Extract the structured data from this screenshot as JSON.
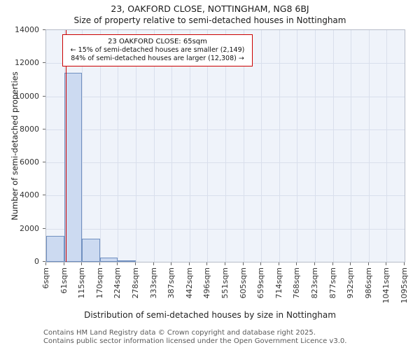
{
  "header": {
    "title": "23, OAKFORD CLOSE, NOTTINGHAM, NG8 6BJ",
    "subtitle": "Size of property relative to semi-detached houses in Nottingham"
  },
  "annotation": {
    "line1": "23 OAKFORD CLOSE: 65sqm",
    "line2": "← 15% of semi-detached houses are smaller (2,149)",
    "line3": "84% of semi-detached houses are larger (12,308) →"
  },
  "footer": {
    "line1": "Contains HM Land Registry data © Crown copyright and database right 2025.",
    "line2": "Contains public sector information licensed under the Open Government Licence v3.0."
  },
  "chart_data": {
    "type": "bar",
    "title": "Size of property relative to semi-detached houses in Nottingham",
    "xlabel": "Distribution of semi-detached houses by size in Nottingham",
    "ylabel": "Number of semi-detached properties",
    "categories": [
      "6sqm",
      "61sqm",
      "115sqm",
      "170sqm",
      "224sqm",
      "278sqm",
      "333sqm",
      "387sqm",
      "442sqm",
      "496sqm",
      "551sqm",
      "605sqm",
      "659sqm",
      "714sqm",
      "768sqm",
      "823sqm",
      "877sqm",
      "932sqm",
      "986sqm",
      "1041sqm",
      "1095sqm"
    ],
    "values": [
      1550,
      11400,
      1400,
      250,
      60,
      0,
      0,
      0,
      0,
      0,
      0,
      0,
      0,
      0,
      0,
      0,
      0,
      0,
      0,
      0
    ],
    "ylim": [
      0,
      14000
    ],
    "yticks": [
      0,
      2000,
      4000,
      6000,
      8000,
      10000,
      12000,
      14000
    ],
    "x_range_sqm": [
      6,
      1095
    ],
    "marker_line": {
      "label": "23 OAKFORD CLOSE",
      "value_sqm": 65,
      "color": "#cc0000"
    },
    "grid": true,
    "legend": false,
    "colors": {
      "bar_fill": "#ccdaf1",
      "bar_border": "#7090c0",
      "grid": "#d9dfec",
      "plot_bg": "#eff3fa",
      "marker": "#cc0000"
    }
  }
}
